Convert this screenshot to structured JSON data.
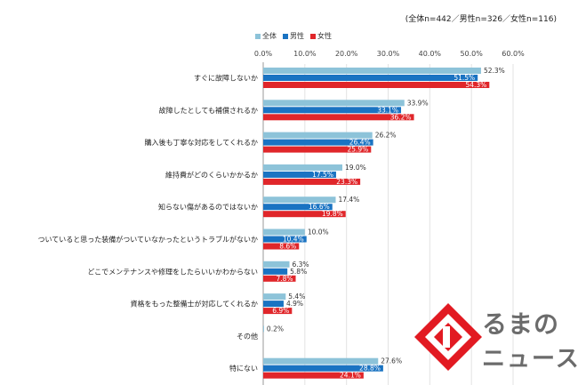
{
  "header": {
    "sample_note": "(全体n=442／男性n=326／女性n=116)"
  },
  "colors": {
    "all": "#8dc3d9",
    "male": "#1a73c2",
    "female": "#e0262a"
  },
  "logo": {
    "line1": "るまの",
    "line2": "ニュース",
    "mark": "brand-k-logo-icon"
  },
  "chart_data": {
    "type": "bar",
    "orientation": "horizontal",
    "xlim": [
      0,
      60
    ],
    "ticks": [
      "0.0%",
      "10.0%",
      "20.0%",
      "30.0%",
      "40.0%",
      "50.0%",
      "60.0%"
    ],
    "tick_values": [
      0,
      10,
      20,
      30,
      40,
      50,
      60
    ],
    "axis_position": "top",
    "grid": true,
    "legend_placement": "top-left",
    "categories": [
      "すぐに故障しないか",
      "故障したとしても補償されるか",
      "購入後も丁寧な対応をしてくれるか",
      "維持費がどのくらいかかるか",
      "知らない傷があるのではないか",
      "ついていると思った装備がついていなかったというトラブルがないか",
      "どこでメンテナンスや修理をしたらいいかわからない",
      "資格をもった整備士が対応してくれるか",
      "その他",
      "特にない"
    ],
    "series": [
      {
        "name": "全体",
        "values": [
          52.3,
          33.9,
          26.2,
          19.0,
          17.4,
          10.0,
          6.3,
          5.4,
          0.2,
          27.6
        ],
        "labels": [
          "52.3%",
          "33.9%",
          "26.2%",
          "19.0%",
          "17.4%",
          "10.0%",
          "6.3%",
          "5.4%",
          "0.2%",
          "27.6%"
        ]
      },
      {
        "name": "男性",
        "values": [
          51.5,
          33.1,
          26.4,
          17.5,
          16.6,
          10.4,
          5.8,
          4.9,
          null,
          28.8
        ],
        "labels": [
          "51.5%",
          "33.1%",
          "26.4%",
          "17.5%",
          "16.6%",
          "10.4%",
          "5.8%",
          "4.9%",
          "",
          "28.8%"
        ]
      },
      {
        "name": "女性",
        "values": [
          54.3,
          36.2,
          25.9,
          23.3,
          19.8,
          8.6,
          7.8,
          6.9,
          null,
          24.1
        ],
        "labels": [
          "54.3%",
          "36.2%",
          "25.9%",
          "23.3%",
          "19.8%",
          "8.6%",
          "7.8%",
          "6.9%",
          "",
          "24.1%"
        ]
      }
    ]
  }
}
